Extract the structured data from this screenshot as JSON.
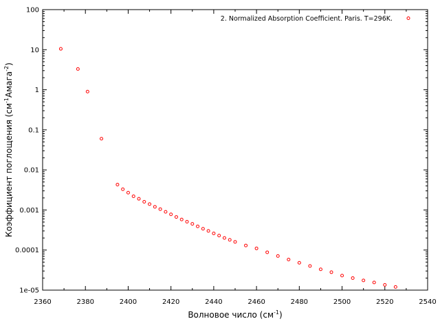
{
  "chart_data": {
    "type": "scatter",
    "title": "",
    "xlabel": "Волновое число (см",
    "xlabel_sup": "-1",
    "xlabel_end": ")",
    "ylabel_parts": [
      "Коэффициент поглощения (см",
      "-1",
      "Амага",
      "-2",
      ")"
    ],
    "xlim": [
      2360,
      2540
    ],
    "ylim": [
      1e-05,
      100
    ],
    "y_scale": "log",
    "grid": false,
    "legend_position": "top-right",
    "x_ticks": [
      2360,
      2380,
      2400,
      2420,
      2440,
      2460,
      2480,
      2500,
      2520,
      2540
    ],
    "x_tick_labels": [
      "2360",
      "2380",
      "2400",
      "2420",
      "2440",
      "2460",
      "2480",
      "2500",
      "2520",
      "2540"
    ],
    "y_ticks": [
      1e-05,
      0.0001,
      0.001,
      0.01,
      0.1,
      1,
      10,
      100
    ],
    "y_tick_labels": [
      "1e-05",
      "0.0001",
      "0.001",
      "0.01",
      "0.1",
      "1",
      "10",
      "100"
    ],
    "marker_color": "#ff0000",
    "series": [
      {
        "name": "2. Normalized Absorption Coefficient. Paris. T=296K.",
        "x": [
          2368.5,
          2376.5,
          2381.0,
          2387.5,
          2395.0,
          2397.5,
          2400.0,
          2402.5,
          2405.0,
          2407.5,
          2410.0,
          2412.5,
          2415.0,
          2417.5,
          2420.0,
          2422.5,
          2425.0,
          2427.5,
          2430.0,
          2432.5,
          2435.0,
          2437.5,
          2440.0,
          2442.5,
          2445.0,
          2447.5,
          2450.0,
          2455.0,
          2460.0,
          2465.0,
          2470.0,
          2475.0,
          2480.0,
          2485.0,
          2490.0,
          2495.0,
          2500.0,
          2505.0,
          2510.0,
          2515.0,
          2520.0,
          2525.0
        ],
        "y": [
          10.5,
          3.3,
          0.9,
          0.06,
          0.0043,
          0.0033,
          0.0027,
          0.0022,
          0.0019,
          0.0016,
          0.0014,
          0.0012,
          0.00105,
          0.0009,
          0.00078,
          0.00067,
          0.00058,
          0.00051,
          0.00045,
          0.00039,
          0.00034,
          0.0003,
          0.00026,
          0.00023,
          0.0002,
          0.00018,
          0.00016,
          0.00013,
          0.00011,
          8.8e-05,
          7.1e-05,
          5.8e-05,
          4.8e-05,
          4e-05,
          3.3e-05,
          2.8e-05,
          2.3e-05,
          2e-05,
          1.75e-05,
          1.55e-05,
          1.35e-05,
          1.2e-05
        ]
      }
    ]
  }
}
